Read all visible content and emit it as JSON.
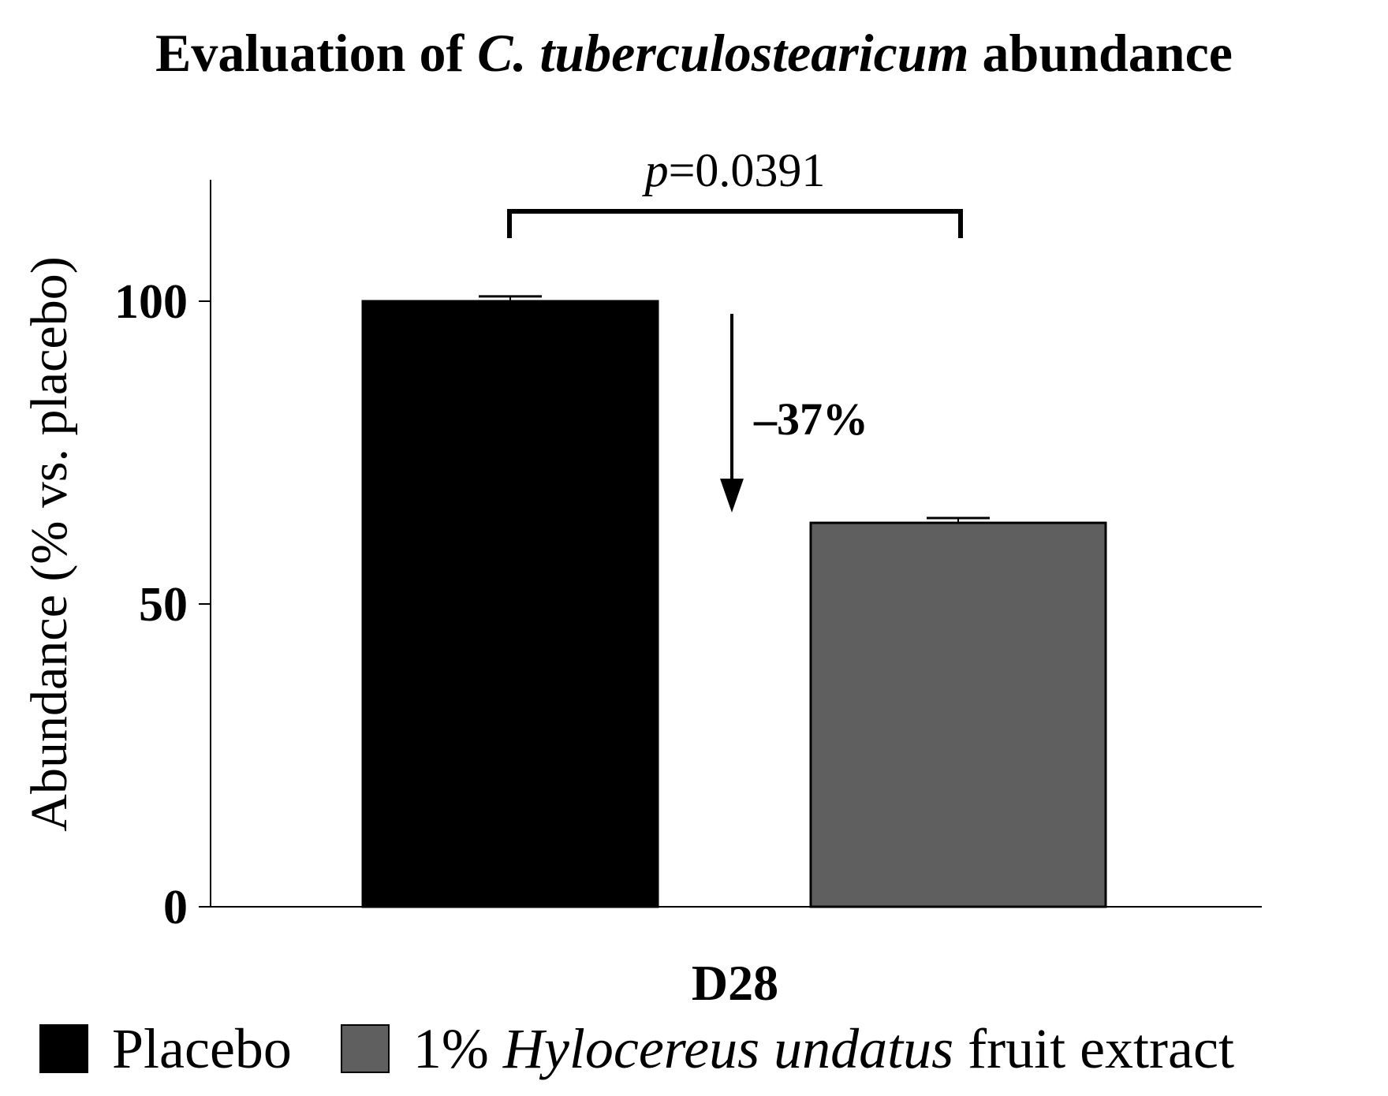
{
  "chart_data": {
    "type": "bar",
    "title": {
      "part1": "Evaluation of ",
      "part2_italic": "C. tuberculostearicum",
      "part3": " abundance"
    },
    "ylabel": "Abundance (% vs. placebo)",
    "xlabel": "D28",
    "ylim": [
      0,
      120
    ],
    "yticks": [
      0,
      50,
      100
    ],
    "grid": false,
    "legend_position": "bottom",
    "series": [
      {
        "name": "Placebo",
        "value": 100,
        "error": 0.8,
        "color": "#000000"
      },
      {
        "name": "1% Hylocereus undatus fruit extract",
        "value": 63.4,
        "error": 0.8,
        "color": "#5f5f5f"
      }
    ],
    "annotations": {
      "significance": {
        "p_label": "p",
        "p_value": "=0.0391"
      },
      "change": "–37%"
    }
  },
  "legend": {
    "items": [
      {
        "label": "Placebo",
        "color": "#000000"
      },
      {
        "label_pre": "1% ",
        "label_italic": "Hylocereus undatus",
        "label_post": " fruit extract",
        "color": "#5f5f5f"
      }
    ]
  }
}
